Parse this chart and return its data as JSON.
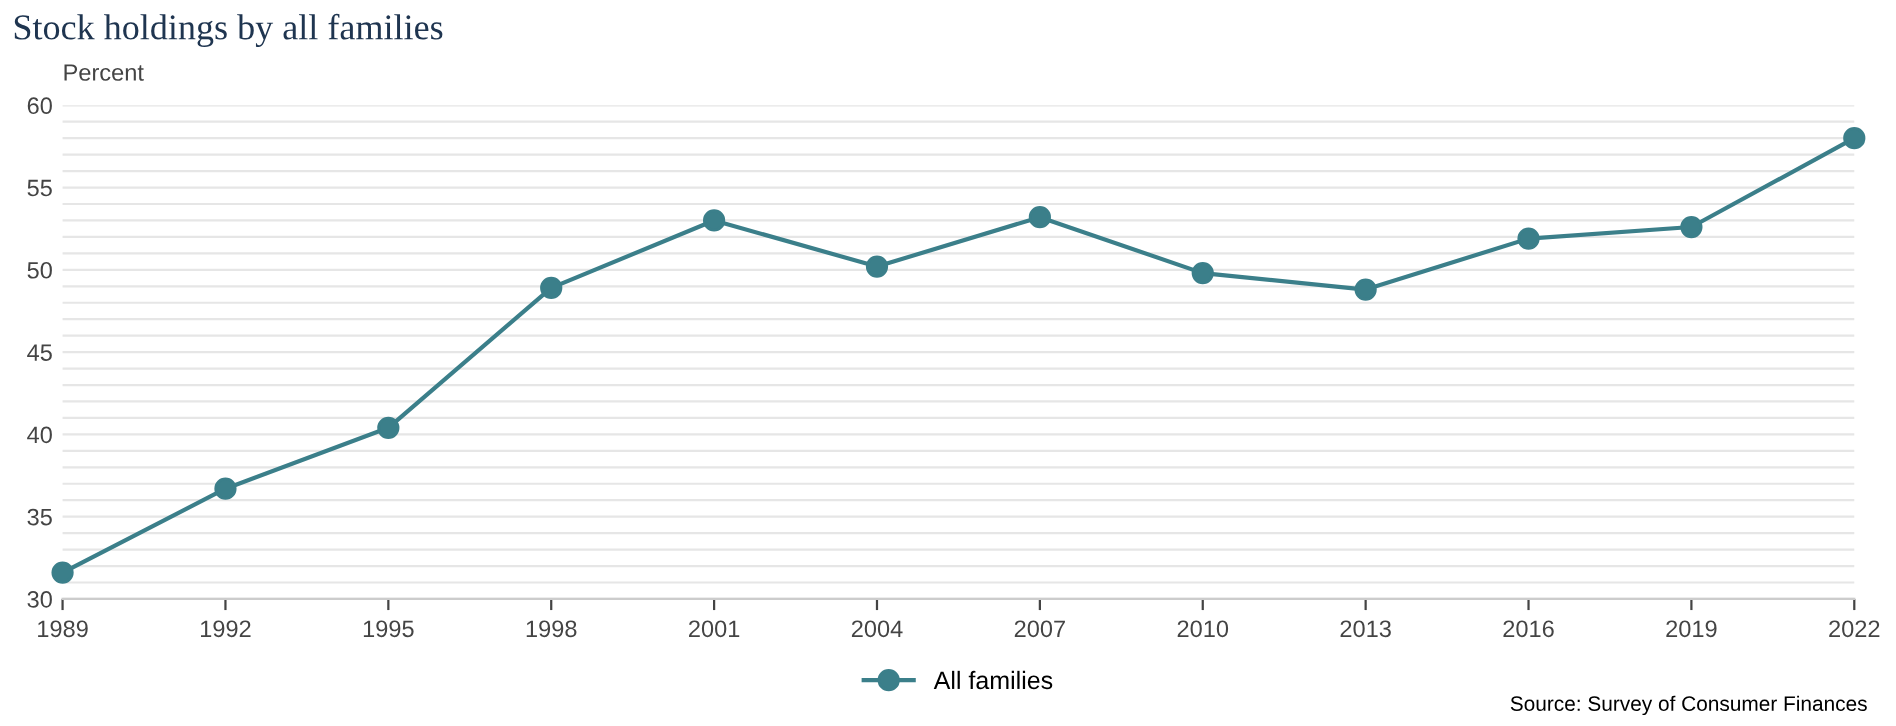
{
  "chart_data": {
    "type": "line",
    "title": "Stock holdings by all families",
    "ylabel": "Percent",
    "x": [
      1989,
      1992,
      1995,
      1998,
      2001,
      2004,
      2007,
      2010,
      2013,
      2016,
      2019,
      2022
    ],
    "series": [
      {
        "name": "All families",
        "color": "#3b7f8a",
        "values": [
          31.6,
          36.7,
          40.4,
          48.9,
          53.0,
          50.2,
          53.2,
          49.8,
          48.8,
          51.9,
          52.6,
          58.0
        ]
      }
    ],
    "xlim": [
      1989,
      2022
    ],
    "xticks": [
      1989,
      1992,
      1995,
      1998,
      2001,
      2004,
      2007,
      2010,
      2013,
      2016,
      2019,
      2022
    ],
    "ylim": [
      30,
      60
    ],
    "yticks": [
      30,
      {
        "value": 31,
        "label": null
      },
      {
        "value": 32,
        "label": null
      },
      {
        "value": 33,
        "label": null
      },
      {
        "value": 34,
        "label": null
      },
      35,
      {
        "value": 36,
        "label": null
      },
      {
        "value": 37,
        "label": null
      },
      {
        "value": 38,
        "label": null
      },
      {
        "value": 39,
        "label": null
      },
      40,
      {
        "value": 41,
        "label": null
      },
      {
        "value": 42,
        "label": null
      },
      {
        "value": 43,
        "label": null
      },
      {
        "value": 44,
        "label": null
      },
      45,
      {
        "value": 46,
        "label": null
      },
      {
        "value": 47,
        "label": null
      },
      {
        "value": 48,
        "label": null
      },
      {
        "value": 49,
        "label": null
      },
      50,
      {
        "value": 51,
        "label": null
      },
      {
        "value": 52,
        "label": null
      },
      {
        "value": 53,
        "label": null
      },
      {
        "value": 54,
        "label": null
      },
      55,
      {
        "value": 56,
        "label": null
      },
      {
        "value": 57,
        "label": null
      },
      {
        "value": 58,
        "label": null
      },
      {
        "value": 59,
        "label": null
      },
      60
    ],
    "grid": "y",
    "legend": "bottom",
    "marker": "circle",
    "line_style": "solid",
    "annotations": [
      "Source: Survey of Consumer Finances"
    ]
  }
}
